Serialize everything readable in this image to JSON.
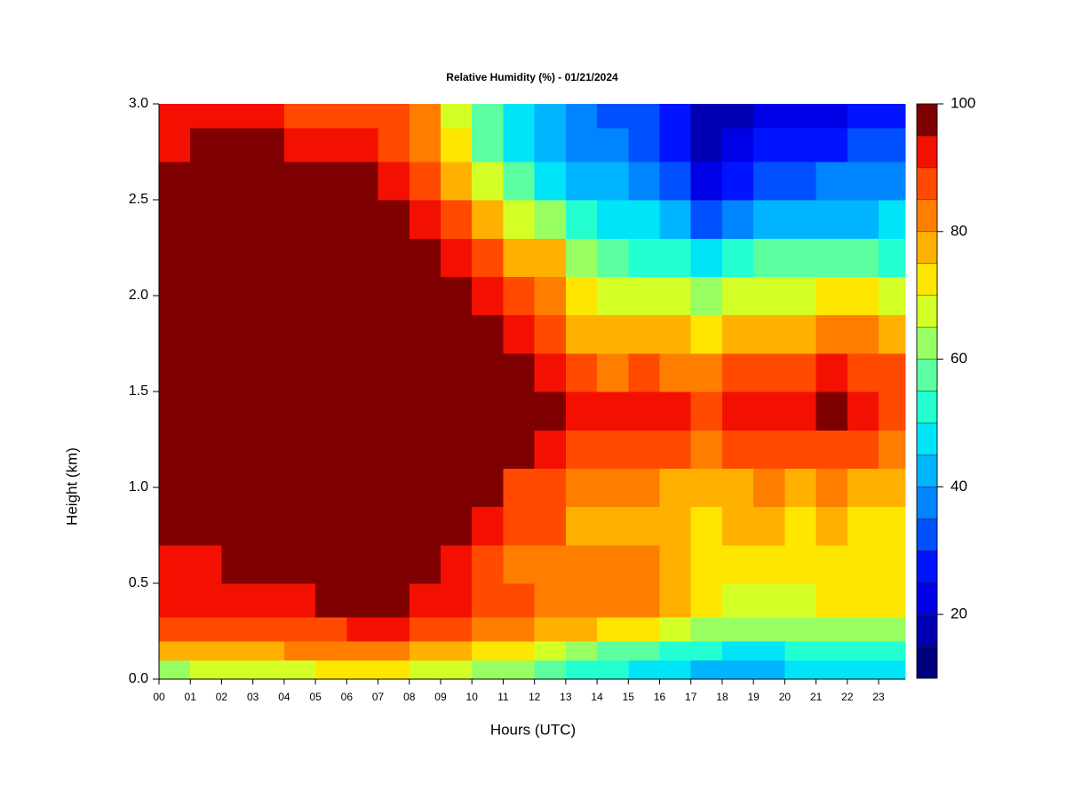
{
  "chart_data": {
    "type": "heatmap",
    "title": "Relative Humidity (%) - 01/21/2024",
    "x_label": "Hours (UTC)",
    "y_label": "Height (km)",
    "xlim": [
      0,
      23.85
    ],
    "ylim": [
      0,
      3
    ],
    "xticks": [
      {
        "value": 0,
        "label": "00"
      },
      {
        "value": 1,
        "label": "01"
      },
      {
        "value": 2,
        "label": "02"
      },
      {
        "value": 3,
        "label": "03"
      },
      {
        "value": 4,
        "label": "04"
      },
      {
        "value": 5,
        "label": "05"
      },
      {
        "value": 6,
        "label": "06"
      },
      {
        "value": 7,
        "label": "07"
      },
      {
        "value": 8,
        "label": "08"
      },
      {
        "value": 9,
        "label": "09"
      },
      10,
      11,
      12,
      13,
      14,
      15,
      16,
      17,
      18,
      19,
      20,
      21,
      22,
      23
    ],
    "yticks": [
      {
        "value": 0,
        "label": "0.0"
      },
      0.5,
      {
        "value": 1,
        "label": "1.0"
      },
      1.5,
      {
        "value": 2,
        "label": "2.0"
      },
      2.5,
      {
        "value": 3,
        "label": "3.0"
      }
    ],
    "x": [
      0.5,
      1.5,
      2.5,
      3.5,
      4.5,
      5.5,
      6.5,
      7.5,
      8.5,
      9.5,
      10.5,
      11.5,
      12.5,
      13.5,
      14.5,
      15.5,
      16.5,
      17.5,
      18.5,
      19.5,
      20.5,
      21.5,
      22.5,
      23.5
    ],
    "y": [
      0.05,
      0.15,
      0.25,
      0.4,
      0.6,
      0.8,
      1.0,
      1.2,
      1.4,
      1.6,
      1.8,
      2.0,
      2.2,
      2.4,
      2.6,
      2.8,
      2.95
    ],
    "z": [
      [
        62,
        65,
        65,
        68,
        68,
        70,
        70,
        70,
        68,
        65,
        62,
        60,
        55,
        52,
        50,
        47,
        45,
        42,
        43,
        43,
        45,
        45,
        45,
        47
      ],
      [
        75,
        78,
        78,
        78,
        80,
        80,
        82,
        82,
        78,
        75,
        72,
        70,
        65,
        62,
        58,
        55,
        52,
        50,
        48,
        48,
        50,
        50,
        50,
        52
      ],
      [
        85,
        85,
        85,
        87,
        88,
        88,
        90,
        90,
        88,
        85,
        82,
        80,
        78,
        75,
        72,
        70,
        65,
        62,
        60,
        60,
        62,
        62,
        62,
        62
      ],
      [
        90,
        92,
        90,
        92,
        93,
        95,
        96,
        95,
        93,
        90,
        87,
        85,
        83,
        82,
        82,
        80,
        75,
        70,
        68,
        68,
        68,
        70,
        70,
        72
      ],
      [
        93,
        93,
        95,
        95,
        96,
        98,
        98,
        98,
        97,
        92,
        87,
        83,
        83,
        80,
        80,
        80,
        76,
        72,
        72,
        72,
        70,
        72,
        70,
        70
      ],
      [
        98,
        98,
        98,
        98,
        98,
        98,
        98,
        98,
        98,
        96,
        90,
        85,
        85,
        78,
        78,
        78,
        75,
        72,
        75,
        75,
        73,
        75,
        72,
        72
      ],
      [
        98,
        98,
        98,
        98,
        98,
        98,
        98,
        98,
        98,
        98,
        95,
        88,
        85,
        80,
        80,
        80,
        78,
        75,
        78,
        80,
        78,
        80,
        78,
        75
      ],
      [
        98,
        98,
        98,
        98,
        98,
        98,
        98,
        98,
        98,
        98,
        98,
        98,
        92,
        85,
        87,
        88,
        85,
        83,
        85,
        87,
        85,
        88,
        87,
        82
      ],
      [
        98,
        98,
        98,
        98,
        98,
        98,
        98,
        98,
        98,
        98,
        98,
        98,
        96,
        90,
        92,
        93,
        90,
        88,
        92,
        93,
        90,
        95,
        93,
        88
      ],
      [
        98,
        98,
        98,
        98,
        98,
        98,
        98,
        98,
        98,
        98,
        98,
        95,
        93,
        85,
        83,
        85,
        83,
        82,
        85,
        88,
        85,
        90,
        88,
        85
      ],
      [
        98,
        98,
        98,
        98,
        98,
        98,
        98,
        98,
        98,
        98,
        95,
        90,
        88,
        78,
        75,
        75,
        75,
        72,
        75,
        78,
        78,
        82,
        80,
        75
      ],
      [
        98,
        98,
        98,
        98,
        98,
        98,
        98,
        98,
        98,
        98,
        92,
        85,
        82,
        70,
        67,
        65,
        65,
        62,
        65,
        68,
        68,
        70,
        70,
        65
      ],
      [
        98,
        98,
        98,
        98,
        98,
        98,
        98,
        98,
        98,
        93,
        85,
        78,
        75,
        60,
        55,
        52,
        50,
        48,
        50,
        55,
        55,
        55,
        55,
        52
      ],
      [
        98,
        98,
        98,
        98,
        98,
        98,
        98,
        97,
        92,
        85,
        75,
        68,
        60,
        50,
        47,
        45,
        40,
        32,
        35,
        40,
        42,
        43,
        42,
        45
      ],
      [
        97,
        98,
        98,
        98,
        98,
        98,
        98,
        93,
        85,
        78,
        65,
        55,
        48,
        42,
        40,
        38,
        33,
        22,
        25,
        30,
        32,
        35,
        35,
        38
      ],
      [
        92,
        95,
        96,
        96,
        93,
        92,
        92,
        88,
        82,
        70,
        58,
        48,
        42,
        38,
        35,
        32,
        27,
        18,
        20,
        25,
        25,
        28,
        30,
        32
      ],
      [
        90,
        90,
        90,
        90,
        88,
        88,
        88,
        88,
        80,
        65,
        55,
        45,
        40,
        35,
        32,
        30,
        25,
        15,
        17,
        20,
        20,
        22,
        25,
        28
      ]
    ],
    "colorbar": {
      "levels": [
        10,
        15,
        20,
        25,
        30,
        35,
        40,
        45,
        50,
        55,
        60,
        65,
        70,
        75,
        80,
        85,
        90,
        95,
        100
      ],
      "colors": [
        "#00007f",
        "#0000b2",
        "#0000e6",
        "#0014ff",
        "#0050ff",
        "#0084ff",
        "#00b4ff",
        "#00e4f8",
        "#24ffd2",
        "#5cffa0",
        "#98ff62",
        "#d4ff26",
        "#ffe600",
        "#ffb000",
        "#ff7e00",
        "#ff4a00",
        "#f41000",
        "#b80000"
      ],
      "top_color": "#7f0000",
      "ticks": [
        20,
        40,
        60,
        80,
        100
      ]
    }
  }
}
